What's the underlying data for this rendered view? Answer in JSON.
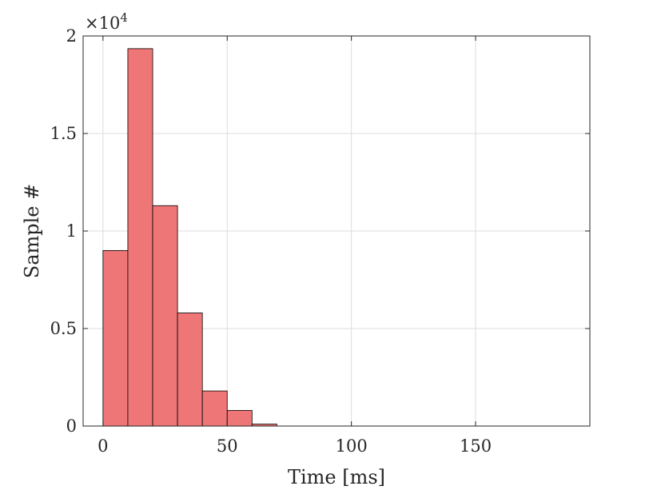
{
  "chart_data": {
    "type": "bar",
    "subtype": "histogram",
    "bin_edges": [
      0,
      10,
      20,
      30,
      40,
      50,
      60,
      70
    ],
    "values": [
      9000,
      19350,
      11300,
      5800,
      1800,
      800,
      100
    ],
    "xlabel": "Time [ms]",
    "ylabel": "Sample #",
    "xlim": [
      -8,
      196
    ],
    "ylim": [
      0,
      20000
    ],
    "x_ticks": [
      0,
      50,
      100,
      150
    ],
    "x_tick_labels": [
      "0",
      "50",
      "100",
      "150"
    ],
    "y_ticks": [
      0,
      5000,
      10000,
      15000,
      20000
    ],
    "y_tick_labels": [
      "0",
      "0.5",
      "1",
      "1.5",
      "2"
    ],
    "y_multiplier_base": "×10",
    "y_multiplier_exp": "4",
    "grid": true,
    "bar_color": "#ee7677",
    "edge_color": "#000000"
  }
}
